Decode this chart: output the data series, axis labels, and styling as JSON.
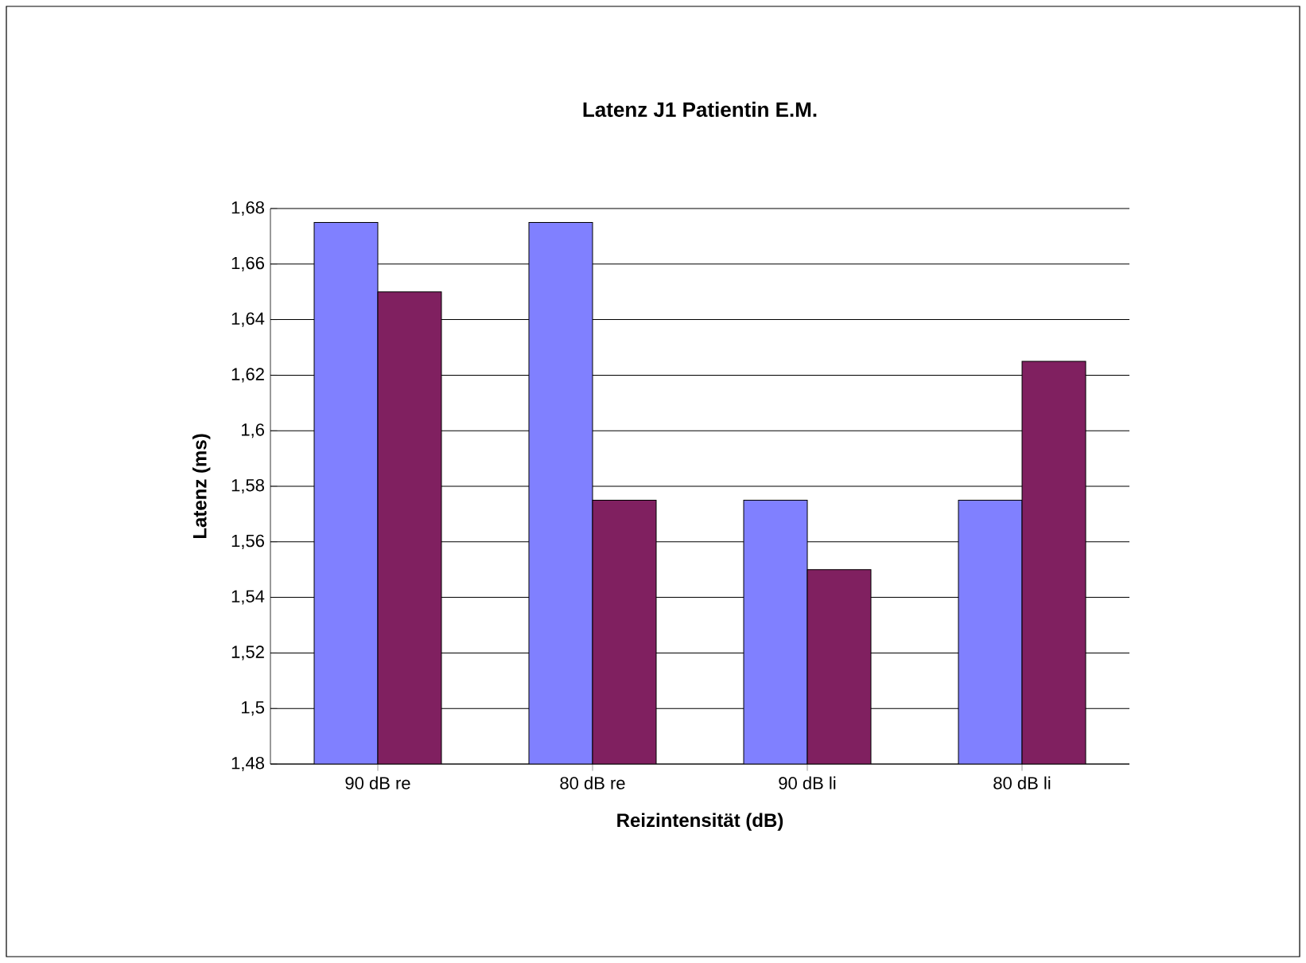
{
  "chart_data": {
    "type": "bar",
    "title": "Latenz J1 Patientin E.M.",
    "xlabel": "Reizintensität (dB)",
    "ylabel": "Latenz (ms)",
    "categories": [
      "90 dB re",
      "80 dB re",
      "90 dB li",
      "80 dB li"
    ],
    "series": [
      {
        "color": "#8080ff",
        "values": [
          1.675,
          1.675,
          1.575,
          1.575
        ]
      },
      {
        "color": "#802060",
        "values": [
          1.65,
          1.575,
          1.55,
          1.625
        ]
      }
    ],
    "ylim": [
      1.48,
      1.68
    ],
    "yticks": [
      {
        "value": 1.48,
        "label": "1,48"
      },
      {
        "value": 1.5,
        "label": "1,5"
      },
      {
        "value": 1.52,
        "label": "1,52"
      },
      {
        "value": 1.54,
        "label": "1,54"
      },
      {
        "value": 1.56,
        "label": "1,56"
      },
      {
        "value": 1.58,
        "label": "1,58"
      },
      {
        "value": 1.6,
        "label": "1,6"
      },
      {
        "value": 1.62,
        "label": "1,62"
      },
      {
        "value": 1.64,
        "label": "1,64"
      },
      {
        "value": 1.66,
        "label": "1,66"
      },
      {
        "value": 1.68,
        "label": "1,68"
      }
    ],
    "grid": "y"
  }
}
